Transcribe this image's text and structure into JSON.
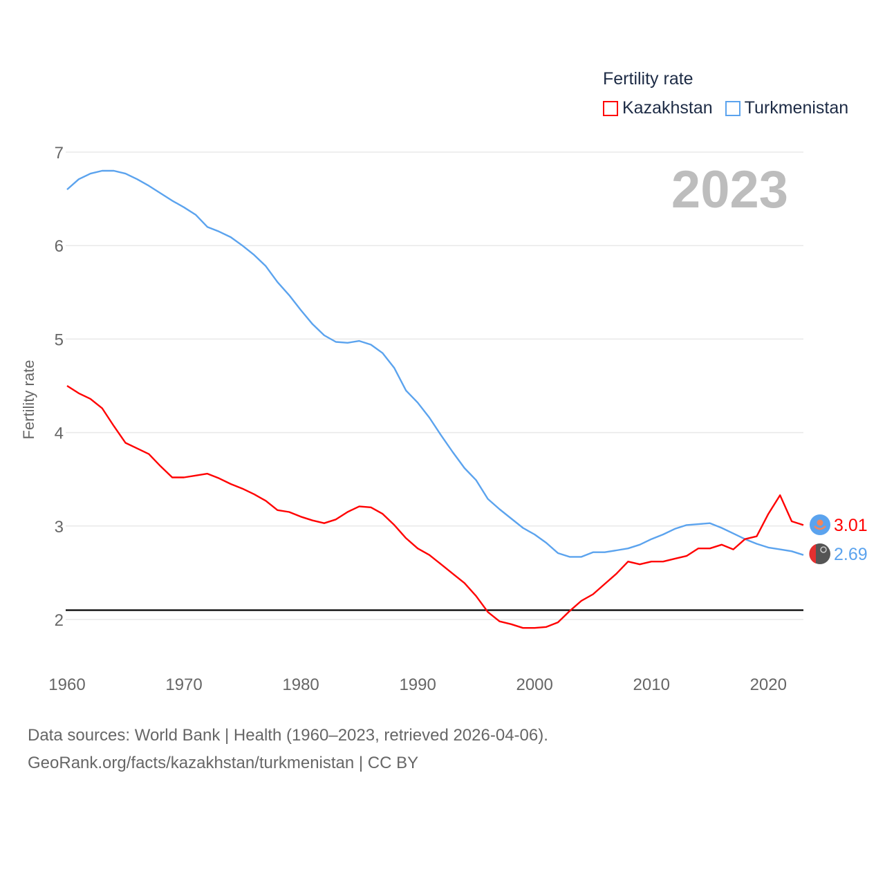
{
  "chart_data": {
    "type": "line",
    "title": "Fertility rate",
    "ylabel": "Fertility rate",
    "xlabel": "",
    "year_label": "2023",
    "xlim": [
      1960,
      2023
    ],
    "ylim": [
      1.6,
      7
    ],
    "xticks": [
      "1960",
      "1970",
      "1980",
      "1990",
      "2000",
      "2010",
      "2020"
    ],
    "yticks": [
      "2",
      "3",
      "4",
      "5",
      "6",
      "7"
    ],
    "grid": true,
    "legend_position": "top-right",
    "reference_line": {
      "value": 2.1,
      "color": "#000000"
    },
    "x": [
      1960,
      1961,
      1962,
      1963,
      1964,
      1965,
      1966,
      1967,
      1968,
      1969,
      1970,
      1971,
      1972,
      1973,
      1974,
      1975,
      1976,
      1977,
      1978,
      1979,
      1980,
      1981,
      1982,
      1983,
      1984,
      1985,
      1986,
      1987,
      1988,
      1989,
      1990,
      1991,
      1992,
      1993,
      1994,
      1995,
      1996,
      1997,
      1998,
      1999,
      2000,
      2001,
      2002,
      2003,
      2004,
      2005,
      2006,
      2007,
      2008,
      2009,
      2010,
      2011,
      2012,
      2013,
      2014,
      2015,
      2016,
      2017,
      2018,
      2019,
      2020,
      2021,
      2022,
      2023
    ],
    "series": [
      {
        "name": "Kazakhstan",
        "color": "#ff0000",
        "end_label": "3.01",
        "values": [
          4.5,
          4.42,
          4.36,
          4.26,
          4.07,
          3.89,
          3.83,
          3.77,
          3.64,
          3.52,
          3.52,
          3.54,
          3.56,
          3.51,
          3.45,
          3.4,
          3.34,
          3.27,
          3.17,
          3.15,
          3.1,
          3.06,
          3.03,
          3.07,
          3.15,
          3.21,
          3.2,
          3.13,
          3.01,
          2.87,
          2.76,
          2.69,
          2.59,
          2.49,
          2.39,
          2.25,
          2.08,
          1.98,
          1.95,
          1.91,
          1.91,
          1.92,
          1.97,
          2.09,
          2.2,
          2.27,
          2.38,
          2.49,
          2.62,
          2.59,
          2.62,
          2.62,
          2.65,
          2.68,
          2.76,
          2.76,
          2.8,
          2.75,
          2.86,
          2.89,
          3.13,
          3.33,
          3.05,
          3.01
        ]
      },
      {
        "name": "Turkmenistan",
        "color": "#5ba3ee",
        "end_label": "2.69",
        "values": [
          6.6,
          6.71,
          6.77,
          6.8,
          6.8,
          6.77,
          6.71,
          6.64,
          6.56,
          6.48,
          6.41,
          6.33,
          6.2,
          6.15,
          6.09,
          6.0,
          5.9,
          5.78,
          5.61,
          5.47,
          5.31,
          5.16,
          5.04,
          4.97,
          4.96,
          4.98,
          4.94,
          4.85,
          4.69,
          4.45,
          4.32,
          4.16,
          3.97,
          3.79,
          3.62,
          3.49,
          3.29,
          3.18,
          3.08,
          2.98,
          2.91,
          2.82,
          2.71,
          2.67,
          2.67,
          2.72,
          2.72,
          2.74,
          2.76,
          2.8,
          2.86,
          2.91,
          2.97,
          3.01,
          3.02,
          3.03,
          2.98,
          2.92,
          2.86,
          2.81,
          2.77,
          2.75,
          2.73,
          2.69
        ]
      }
    ]
  },
  "footer": {
    "line1": "Data sources: World Bank | Health (1960–2023, retrieved 2026-04-06).",
    "line2": "GeoRank.org/facts/kazakhstan/turkmenistan | CC BY"
  }
}
